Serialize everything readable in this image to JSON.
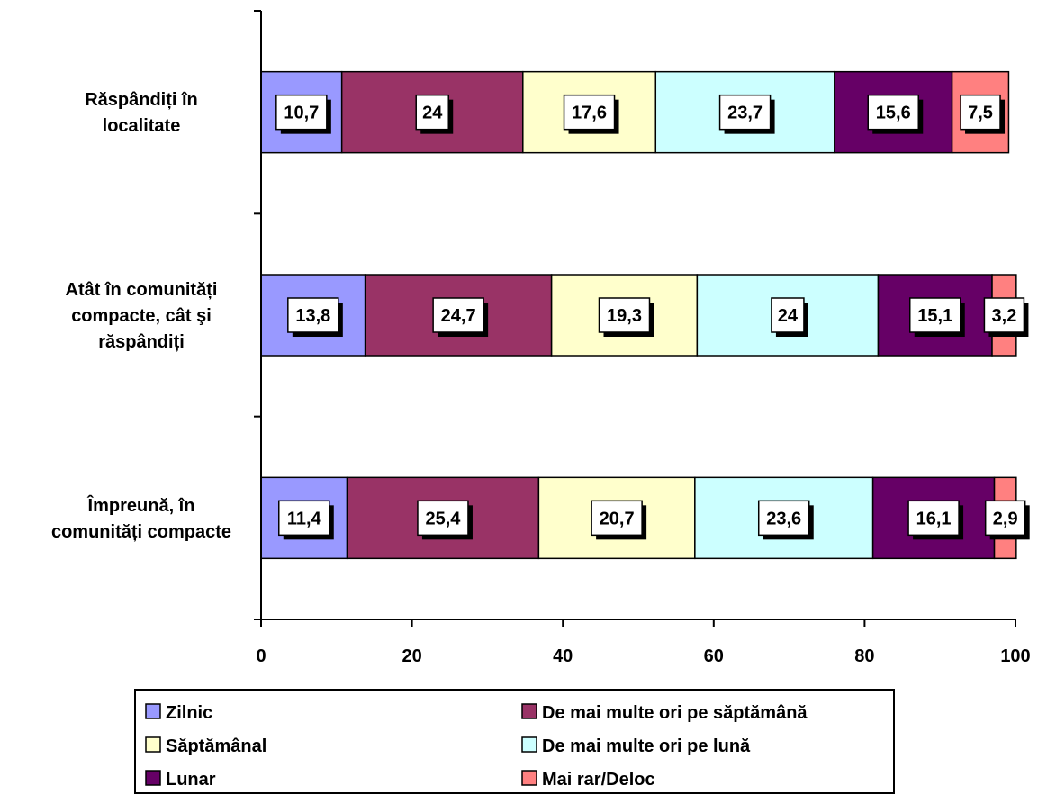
{
  "chart_data": {
    "type": "bar",
    "orientation": "horizontal",
    "stacked": true,
    "categories": [
      "Răspândiți în localitate",
      "Atât în comunități compacte, cât şi răspândiți",
      "Împreună, în comunități compacte"
    ],
    "category_lines": [
      [
        "Răspândiți în",
        "localitate"
      ],
      [
        "Atât în comunități",
        "compacte, cât şi",
        "răspândiți"
      ],
      [
        "Împreună, în",
        "comunități compacte"
      ]
    ],
    "series": [
      {
        "name": "Zilnic",
        "color": "#9999FF",
        "values": [
          10.7,
          13.8,
          11.4
        ],
        "labels": [
          "10,7",
          "13,8",
          "11,4"
        ]
      },
      {
        "name": "De mai multe ori pe săptămână",
        "color": "#993366",
        "values": [
          24,
          24.7,
          25.4
        ],
        "labels": [
          "24",
          "24,7",
          "25,4"
        ]
      },
      {
        "name": "Săptămânal",
        "color": "#FFFFCC",
        "values": [
          17.6,
          19.3,
          20.7
        ],
        "labels": [
          "17,6",
          "19,3",
          "20,7"
        ]
      },
      {
        "name": "De mai multe ori pe lună",
        "color": "#CCFFFF",
        "values": [
          23.7,
          24,
          23.6
        ],
        "labels": [
          "23,7",
          "24",
          "23,6"
        ]
      },
      {
        "name": "Lunar",
        "color": "#660066",
        "values": [
          15.6,
          15.1,
          16.1
        ],
        "labels": [
          "15,6",
          "15,1",
          "16,1"
        ]
      },
      {
        "name": "Mai rar/Deloc",
        "color": "#FF8080",
        "values": [
          7.5,
          3.2,
          2.9
        ],
        "labels": [
          "7,5",
          "3,2",
          "2,9"
        ]
      }
    ],
    "xlim": [
      0,
      100
    ],
    "xticks": [
      0,
      20,
      40,
      60,
      80,
      100
    ],
    "xtick_labels": [
      "0",
      "20",
      "40",
      "60",
      "80",
      "100"
    ],
    "xlabel": "",
    "ylabel": "",
    "title": "",
    "grid": false,
    "legend_position": "bottom"
  }
}
